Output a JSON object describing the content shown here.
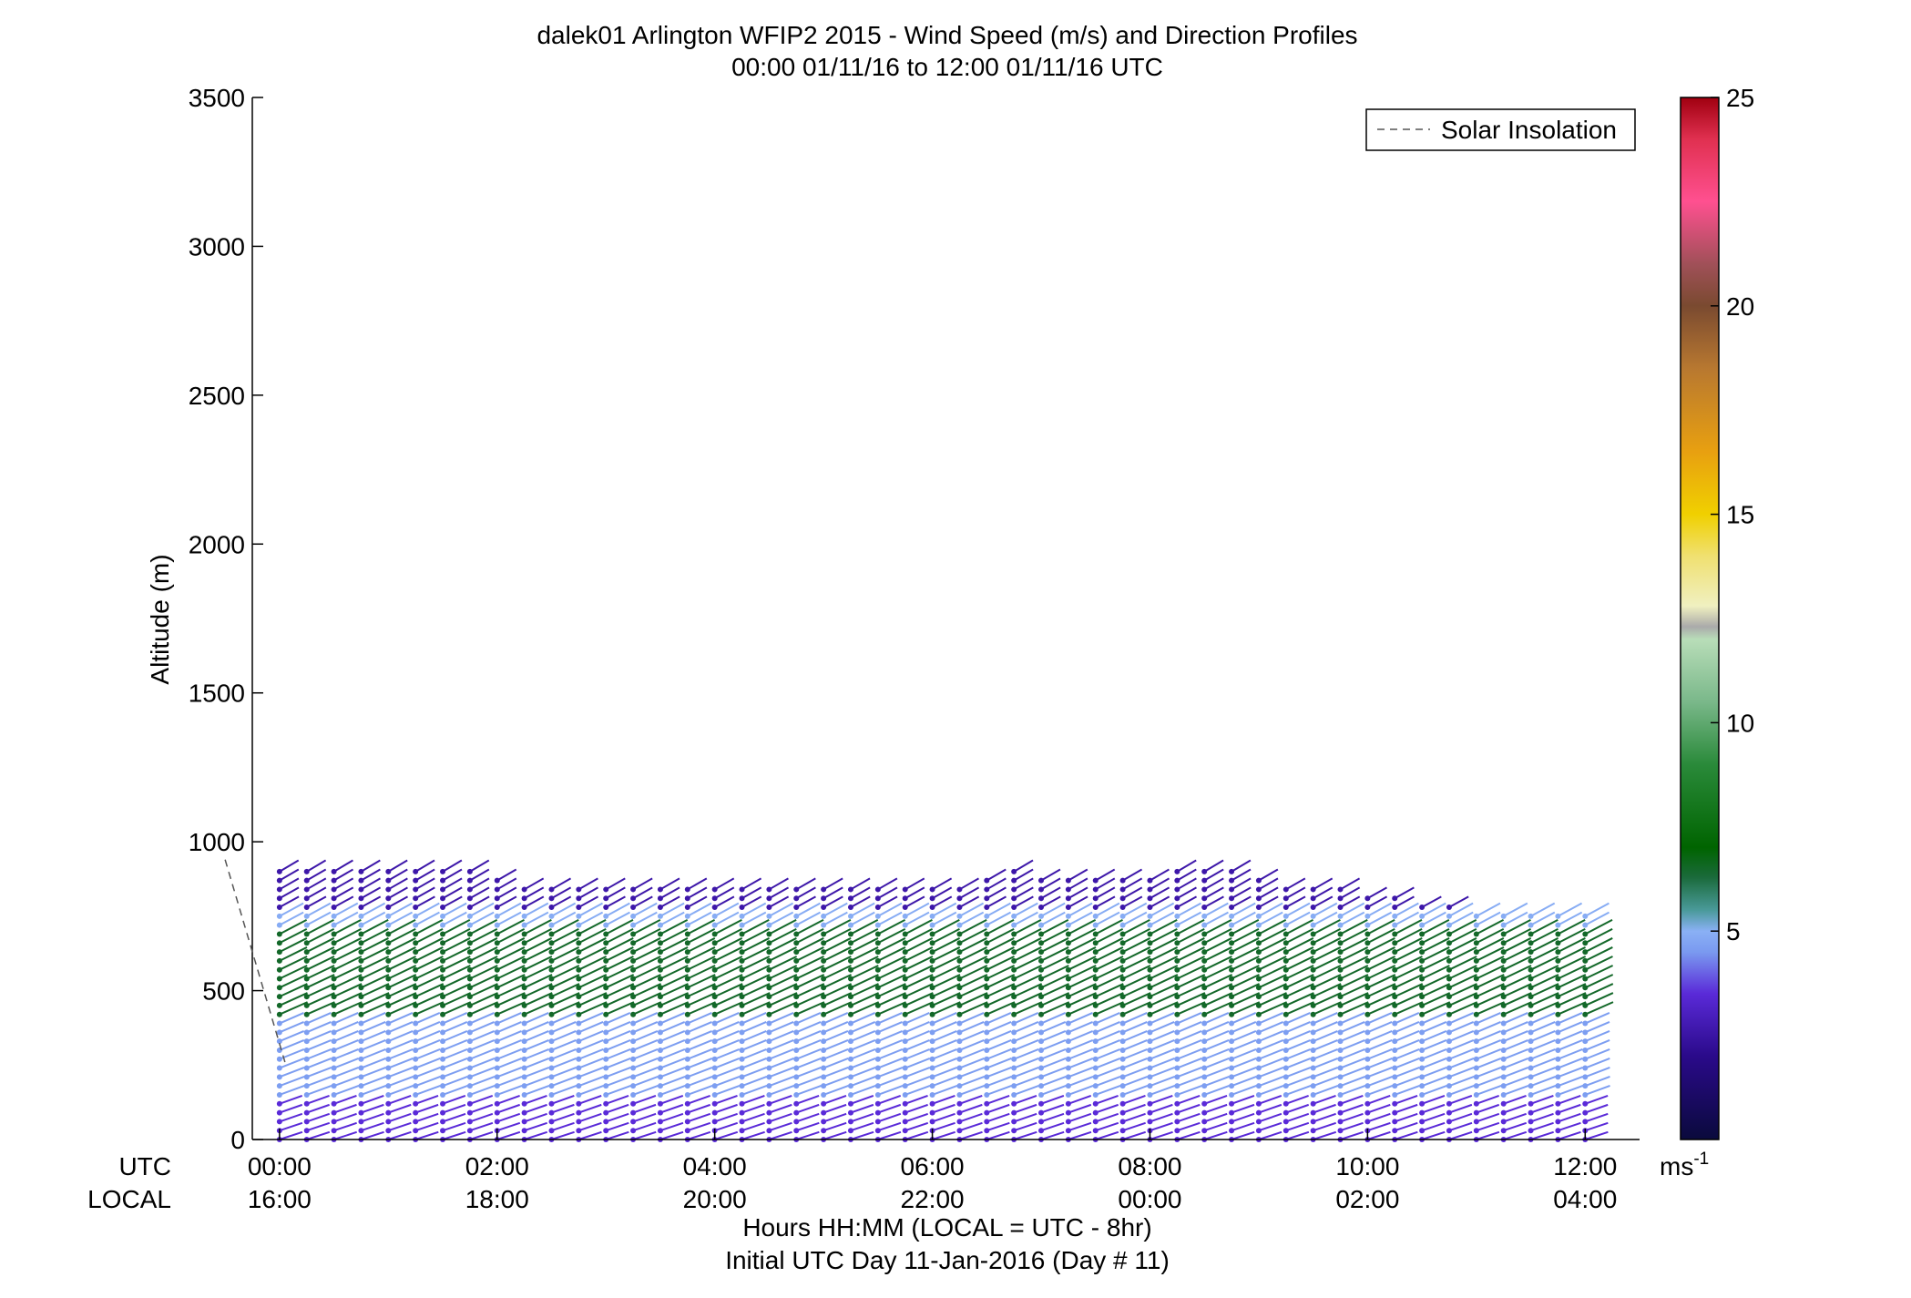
{
  "chart_data": {
    "type": "wind-barb-profile",
    "title": "dalek01 Arlington WFIP2 2015 - Wind Speed (m/s) and Direction Profiles",
    "subtitle": "00:00 01/11/16 to 12:00 01/11/16  UTC",
    "ylabel": "Altitude (m)",
    "xlabel": "Hours HH:MM  (LOCAL = UTC - 8hr)",
    "xlabel2": "Initial UTC Day 11-Jan-2016 (Day # 11)",
    "utc_row_label": "UTC",
    "local_row_label": "LOCAL",
    "ylim": [
      0,
      3500
    ],
    "yticks": [
      "0",
      "500",
      "1000",
      "1500",
      "2000",
      "2500",
      "3000",
      "3500"
    ],
    "yticks_values": [
      0,
      500,
      1000,
      1500,
      2000,
      2500,
      3000,
      3500
    ],
    "xlim_hours": [
      -0.25,
      12.5
    ],
    "xticks_hours": [
      0,
      2,
      4,
      6,
      8,
      10,
      12
    ],
    "xticks_utc": [
      "00:00",
      "02:00",
      "04:00",
      "06:00",
      "08:00",
      "10:00",
      "12:00"
    ],
    "xticks_local": [
      "16:00",
      "18:00",
      "20:00",
      "22:00",
      "00:00",
      "02:00",
      "04:00"
    ],
    "legend": {
      "entries": [
        "Solar Insolation"
      ],
      "position": "top-right"
    },
    "solar_insolation": {
      "x_hours": [
        -0.5,
        0.05
      ],
      "y_m": [
        940,
        260
      ],
      "style": "dashed"
    },
    "colorbar": {
      "range": [
        0,
        25
      ],
      "ticks": [
        5,
        10,
        15,
        20,
        25
      ],
      "tick_labels": [
        "5",
        "10",
        "15",
        "20",
        "25"
      ],
      "unit_label": "ms",
      "unit_exponent": "-1",
      "colormap_stops": [
        [
          0,
          "#0a0a3c"
        ],
        [
          2,
          "#2a0a8a"
        ],
        [
          3.5,
          "#5a2ad8"
        ],
        [
          4.5,
          "#7a9af0"
        ],
        [
          5,
          "#8ab0f5"
        ],
        [
          5.5,
          "#4a9a9a"
        ],
        [
          6.3,
          "#1a6a3a"
        ],
        [
          7,
          "#006400"
        ],
        [
          9,
          "#2a8a3a"
        ],
        [
          10.5,
          "#7ab88a"
        ],
        [
          12,
          "#b8ddb8"
        ],
        [
          12.3,
          "#aaaaaa"
        ],
        [
          12.8,
          "#f0f0c0"
        ],
        [
          14,
          "#f0e070"
        ],
        [
          15,
          "#f0d000"
        ],
        [
          16.5,
          "#e8a010"
        ],
        [
          18.5,
          "#b87830"
        ],
        [
          20,
          "#7a4a30"
        ],
        [
          21,
          "#a05058"
        ],
        [
          22.5,
          "#ff5090"
        ],
        [
          24,
          "#e03050"
        ],
        [
          25,
          "#a00010"
        ]
      ]
    },
    "profile_times_hours": [
      0,
      0.25,
      0.5,
      0.75,
      1,
      1.25,
      1.5,
      1.75,
      2,
      2.25,
      2.5,
      2.75,
      3,
      3.25,
      3.5,
      3.75,
      4,
      4.25,
      4.5,
      4.75,
      5,
      5.25,
      5.5,
      5.75,
      6,
      6.25,
      6.5,
      6.75,
      7,
      7.25,
      7.5,
      7.75,
      8,
      8.25,
      8.5,
      8.75,
      9,
      9.25,
      9.5,
      9.75,
      10,
      10.25,
      10.5,
      10.75,
      11,
      11.25,
      11.5,
      11.75,
      12
    ],
    "profile_top_m": [
      920,
      920,
      920,
      920,
      900,
      900,
      900,
      900,
      880,
      860,
      850,
      840,
      860,
      860,
      840,
      840,
      840,
      840,
      840,
      840,
      850,
      860,
      860,
      860,
      850,
      860,
      880,
      900,
      880,
      870,
      880,
      880,
      880,
      900,
      900,
      900,
      880,
      860,
      850,
      840,
      830,
      810,
      790,
      780,
      770,
      770,
      770,
      770,
      760
    ],
    "range_gate_m": 30,
    "speed_layers_ms": [
      {
        "from_m": 0,
        "to_m": 150,
        "speed": 3.5
      },
      {
        "from_m": 150,
        "to_m": 400,
        "speed": 4.6
      },
      {
        "from_m": 400,
        "to_m": 700,
        "speed": 6.5
      },
      {
        "from_m": 700,
        "to_m": 780,
        "speed": 4.9
      },
      {
        "from_m": 780,
        "to_m": 1000,
        "speed": 2.6
      }
    ],
    "direction_note": "wind shafts tilted up-right in most layers"
  }
}
